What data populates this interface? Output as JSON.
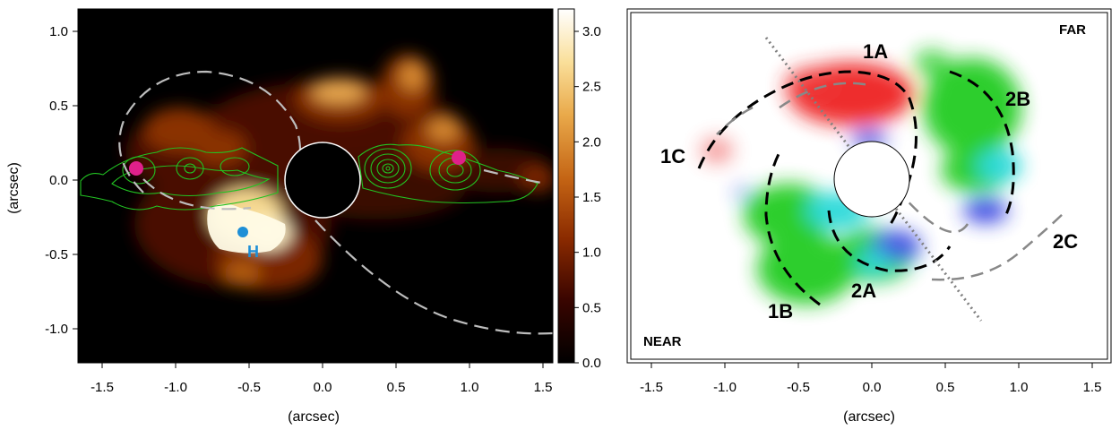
{
  "left_panel": {
    "ylabel": "(arcsec)",
    "xlabel": "(arcsec)",
    "x_ticks": [
      "-1.5",
      "-1.0",
      "-0.5",
      "0.0",
      "0.5",
      "1.0",
      "1.5"
    ],
    "y_ticks": [
      "1.0",
      "0.5",
      "0.0",
      "-0.5",
      "-1.0"
    ],
    "colorbar_ticks": [
      "3.0",
      "2.5",
      "2.0",
      "1.5",
      "1.0",
      "0.5",
      "0.0"
    ],
    "marker_label": "H",
    "colors": {
      "background": "#000000",
      "contour": "#22c322",
      "ellipse": "#bdbdbd",
      "marker_magenta": "#e0208a",
      "marker_blue": "#1e8fd6"
    }
  },
  "right_panel": {
    "xlabel": "(arcsec)",
    "x_ticks": [
      "-1.5",
      "-1.0",
      "-0.5",
      "0.0",
      "0.5",
      "1.0",
      "1.5"
    ],
    "far_label": "FAR",
    "near_label": "NEAR",
    "regions": [
      "1A",
      "1B",
      "1C",
      "2A",
      "2B",
      "2C"
    ],
    "colors": {
      "red": "#ee2020",
      "green": "#22cc22",
      "blue": "#3040e0",
      "cyan": "#20d8d8"
    }
  }
}
